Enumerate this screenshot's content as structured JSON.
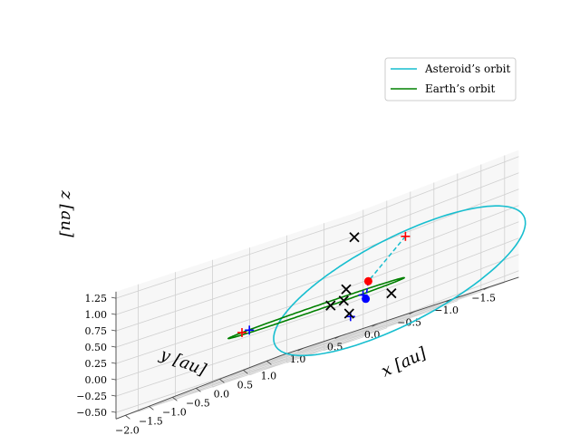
{
  "chart_data": {
    "type": "line",
    "projection": "3d",
    "xlabel": "$x$ [au]",
    "ylabel": "$y$ [au]",
    "zlabel": "$z$ [au]",
    "axis_labels": {
      "x": "x [au]",
      "y": "y [au]",
      "z": "z [au]"
    },
    "xlim": [
      -2.2,
      1.3
    ],
    "ylim": [
      -1.9,
      1.3
    ],
    "zlim": [
      -0.6,
      1.35
    ],
    "x_ticks": [
      "−2.0",
      "−1.5",
      "−1.0",
      "−0.5",
      "0.0",
      "0.5",
      "1.0"
    ],
    "x_tick_values": [
      -2.0,
      -1.5,
      -1.0,
      -0.5,
      0.0,
      0.5,
      1.0
    ],
    "y_ticks": [
      "1.0",
      "0.5",
      "0.0",
      "−0.5",
      "−1.0",
      "−1.5"
    ],
    "y_tick_values": [
      1.0,
      0.5,
      0.0,
      -0.5,
      -1.0,
      -1.5
    ],
    "z_ticks": [
      "1.25",
      "1.00",
      "0.75",
      "0.50",
      "0.25",
      "0.00",
      "−0.25",
      "−0.50"
    ],
    "z_tick_values": [
      1.25,
      1.0,
      0.75,
      0.5,
      0.25,
      0.0,
      -0.25,
      -0.5
    ],
    "grid": true,
    "legend_position": "top-right",
    "series": [
      {
        "name": "Asteroid’s orbit",
        "color": "#17becf",
        "orbit": {
          "a": 1.6,
          "e": 0.7,
          "inclination_deg": 40,
          "node_deg": 270,
          "perihelion_deg": 180,
          "center": [
            0.0,
            0.0,
            0.0
          ]
        }
      },
      {
        "name": "Earth’s orbit",
        "color": "#008000",
        "orbit": {
          "a": 1.0,
          "e": 0.0,
          "inclination_deg": 0,
          "node_deg": 0,
          "perihelion_deg": 0,
          "center": [
            0.0,
            0.0,
            0.0
          ]
        }
      }
    ],
    "markers": {
      "red_plus": [
        [
          0.0,
          1.0,
          0.0
        ],
        [
          0.0,
          -1.2,
          0.65
        ]
      ],
      "blue_plus": [
        [
          0.0,
          0.9,
          0.0
        ],
        [
          -0.9,
          -1.2,
          0.0
        ],
        [
          1.2,
          0.3,
          -0.35
        ]
      ],
      "black_x": [
        [
          -1.4,
          -1.4,
          0.95
        ],
        [
          0.95,
          0.2,
          0.1
        ],
        [
          -0.8,
          -0.7,
          0.0
        ],
        [
          -0.6,
          -0.75,
          0.0
        ],
        [
          1.2,
          -0.25,
          -0.2
        ],
        [
          1.25,
          0.35,
          -0.3
        ]
      ],
      "red_dot": [
        [
          0.0,
          -0.7,
          0.15
        ]
      ],
      "blue_dot": [
        [
          1.05,
          0.0,
          -0.15
        ]
      ]
    },
    "dashed_lines": [
      {
        "color": "#17becf",
        "from": [
          0.0,
          -1.2,
          0.65
        ],
        "to": [
          0.0,
          -0.7,
          0.15
        ]
      },
      {
        "color": "#0000ff",
        "from": [
          0.0,
          -0.7,
          0.15
        ],
        "to": [
          1.05,
          0.0,
          -0.15
        ]
      }
    ]
  }
}
